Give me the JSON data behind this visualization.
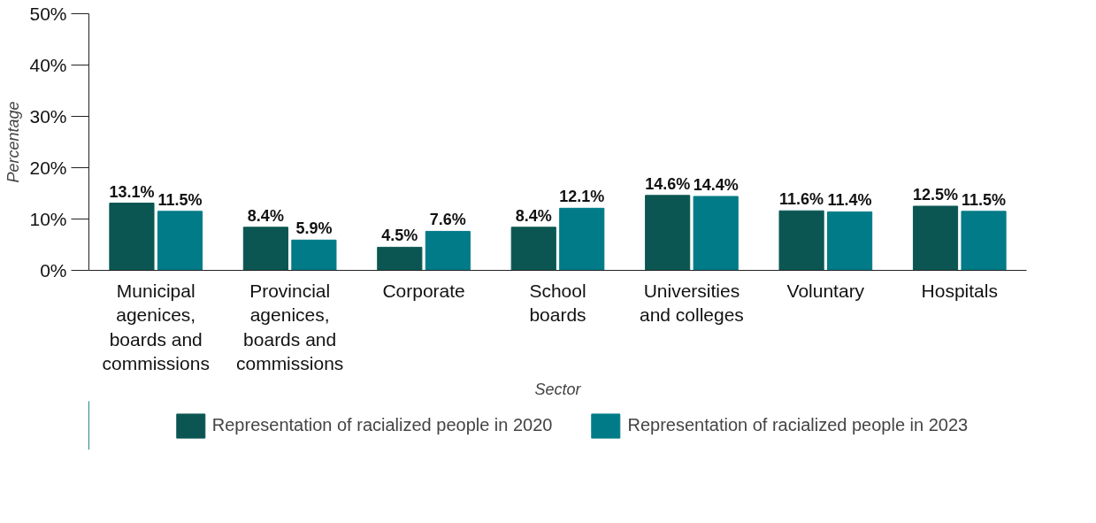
{
  "chart_data": {
    "type": "bar",
    "xlabel": "Sector",
    "ylabel": "Percentage",
    "categories": [
      "Municipal agenices, boards and commissions",
      "Provincial agenices, boards and commissions",
      "Corporate",
      "School boards",
      "Universities and colleges",
      "Voluntary",
      "Hospitals"
    ],
    "series": [
      {
        "name": "Representation of racialized people in 2020",
        "color": "#0b5652",
        "values": [
          13.1,
          8.4,
          4.5,
          8.4,
          14.6,
          11.6,
          12.5
        ],
        "value_labels": [
          "13.1%",
          "8.4%",
          "4.5%",
          "8.4%",
          "14.6%",
          "11.6%",
          "12.5%"
        ]
      },
      {
        "name": "Representation of racialized people in 2023",
        "color": "#007b87",
        "values": [
          11.5,
          5.9,
          7.6,
          12.1,
          14.4,
          11.4,
          11.5
        ],
        "value_labels": [
          "11.5%",
          "5.9%",
          "7.6%",
          "12.1%",
          "14.4%",
          "11.4%",
          "11.5%"
        ]
      }
    ],
    "ylim": [
      0,
      50
    ],
    "yticks": [
      {
        "value": 0,
        "label": "0%"
      },
      {
        "value": 10,
        "label": "10%"
      },
      {
        "value": 20,
        "label": "20%"
      },
      {
        "value": 30,
        "label": "30%"
      },
      {
        "value": 40,
        "label": "40%"
      },
      {
        "value": 50,
        "label": "50%"
      }
    ],
    "grid": false,
    "legend": "bottom"
  }
}
